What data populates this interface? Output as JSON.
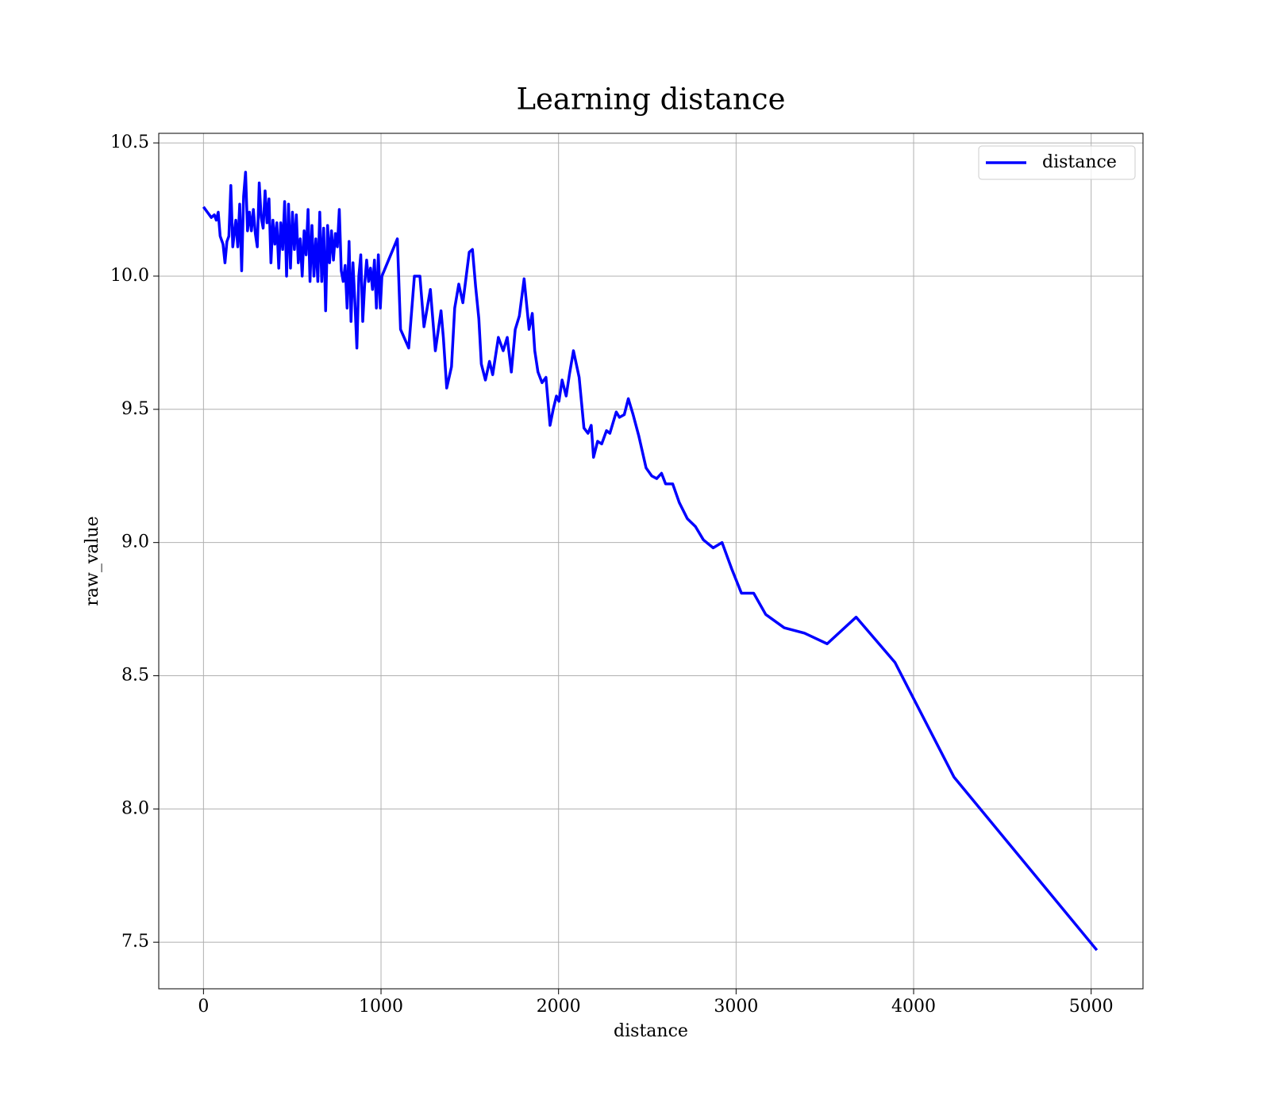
{
  "chart_data": {
    "type": "line",
    "title": "Learning distance",
    "xlabel": "distance",
    "ylabel": "raw_value",
    "x": [
      0,
      22,
      44,
      61,
      72,
      83,
      94,
      110,
      121,
      132,
      143,
      154,
      165,
      182,
      193,
      204,
      215,
      226,
      237,
      248,
      259,
      270,
      281,
      292,
      303,
      314,
      325,
      336,
      347,
      358,
      369,
      380,
      391,
      402,
      413,
      424,
      435,
      446,
      457,
      468,
      479,
      490,
      501,
      512,
      523,
      534,
      545,
      556,
      567,
      578,
      589,
      600,
      611,
      622,
      633,
      644,
      655,
      666,
      677,
      688,
      699,
      710,
      721,
      732,
      743,
      754,
      765,
      776,
      787,
      798,
      809,
      820,
      831,
      842,
      853,
      864,
      875,
      886,
      897,
      908,
      919,
      930,
      941,
      952,
      963,
      974,
      985,
      996,
      1005,
      1092,
      1110,
      1156,
      1188,
      1219,
      1242,
      1278,
      1306,
      1338,
      1351,
      1370,
      1397,
      1415,
      1438,
      1461,
      1497,
      1515,
      1533,
      1551,
      1565,
      1588,
      1611,
      1629,
      1661,
      1688,
      1711,
      1734,
      1756,
      1779,
      1806,
      1834,
      1852,
      1866,
      1884,
      1907,
      1929,
      1952,
      1970,
      1988,
      2002,
      2020,
      2043,
      2061,
      2084,
      2116,
      2143,
      2166,
      2184,
      2197,
      2220,
      2243,
      2270,
      2289,
      2325,
      2343,
      2370,
      2393,
      2420,
      2452,
      2493,
      2525,
      2553,
      2580,
      2603,
      2643,
      2680,
      2725,
      2771,
      2816,
      2871,
      2921,
      2976,
      3030,
      3099,
      3167,
      3271,
      3385,
      3513,
      3676,
      3895,
      4227,
      5032
    ],
    "series": [
      {
        "name": "distance",
        "color": "#0000ff",
        "values": [
          10.26,
          10.24,
          10.22,
          10.23,
          10.21,
          10.24,
          10.15,
          10.12,
          10.05,
          10.13,
          10.15,
          10.34,
          10.11,
          10.21,
          10.11,
          10.27,
          10.02,
          10.3,
          10.39,
          10.17,
          10.24,
          10.17,
          10.25,
          10.16,
          10.11,
          10.35,
          10.22,
          10.18,
          10.32,
          10.2,
          10.29,
          10.05,
          10.21,
          10.12,
          10.2,
          10.03,
          10.2,
          10.1,
          10.28,
          10.0,
          10.27,
          10.03,
          10.24,
          10.1,
          10.23,
          10.05,
          10.14,
          10.0,
          10.17,
          10.08,
          10.25,
          9.98,
          10.19,
          10.0,
          10.14,
          9.98,
          10.24,
          9.98,
          10.18,
          9.87,
          10.19,
          10.05,
          10.17,
          10.06,
          10.16,
          10.11,
          10.25,
          10.02,
          9.98,
          10.04,
          9.88,
          10.13,
          9.83,
          10.05,
          9.9,
          9.73,
          10.0,
          10.08,
          9.83,
          9.97,
          10.06,
          9.98,
          10.03,
          9.95,
          10.06,
          9.88,
          10.08,
          9.88,
          10.0,
          10.14,
          9.8,
          9.73,
          10.0,
          10.0,
          9.81,
          9.95,
          9.72,
          9.87,
          9.77,
          9.58,
          9.66,
          9.88,
          9.97,
          9.9,
          10.09,
          10.1,
          9.96,
          9.84,
          9.67,
          9.61,
          9.68,
          9.63,
          9.77,
          9.72,
          9.77,
          9.64,
          9.8,
          9.85,
          9.99,
          9.8,
          9.86,
          9.72,
          9.64,
          9.6,
          9.62,
          9.44,
          9.5,
          9.55,
          9.53,
          9.61,
          9.55,
          9.63,
          9.72,
          9.62,
          9.43,
          9.41,
          9.44,
          9.32,
          9.38,
          9.37,
          9.42,
          9.41,
          9.49,
          9.47,
          9.48,
          9.54,
          9.48,
          9.4,
          9.28,
          9.25,
          9.24,
          9.26,
          9.22,
          9.22,
          9.15,
          9.09,
          9.06,
          9.01,
          8.98,
          9.0,
          8.9,
          8.81,
          8.81,
          8.73,
          8.68,
          8.66,
          8.62,
          8.72,
          8.55,
          8.12,
          7.47
        ]
      }
    ],
    "xlim": [
      -252,
      5292
    ],
    "xticks": [
      0,
      1000,
      2000,
      3000,
      4000,
      5000
    ],
    "ylim": [
      7.325,
      10.536
    ],
    "yticks": [
      {
        "value": 7.5,
        "label": "7.5"
      },
      {
        "value": 8,
        "label": "8.0"
      },
      {
        "value": 8.5,
        "label": "8.5"
      },
      {
        "value": 9,
        "label": "9.0"
      },
      {
        "value": 9.5,
        "label": "9.5"
      },
      {
        "value": 10,
        "label": "10.0"
      },
      {
        "value": 10.5,
        "label": "10.5"
      }
    ],
    "grid": true,
    "legend": "upper right"
  }
}
